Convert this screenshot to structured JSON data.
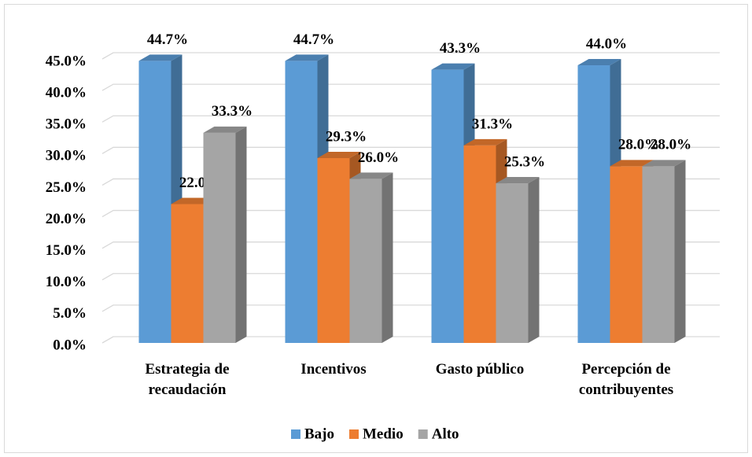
{
  "chart_data": {
    "type": "bar3d",
    "categories": [
      "Estrategia de recaudación",
      "Incentivos",
      "Gasto público",
      "Percepción de contribuyentes"
    ],
    "series": [
      {
        "name": "Bajo",
        "color": "#5b9bd5",
        "values": [
          44.7,
          44.7,
          43.3,
          44.0
        ],
        "value_labels": [
          "44.7%",
          "44.7%",
          "43.3%",
          "44.0%"
        ]
      },
      {
        "name": "Medio",
        "color": "#ed7d31",
        "values": [
          22.0,
          29.3,
          31.3,
          28.0
        ],
        "value_labels": [
          "22.0%",
          "29.3%",
          "31.3%",
          "28.0%"
        ]
      },
      {
        "name": "Alto",
        "color": "#a5a5a5",
        "values": [
          33.3,
          26.0,
          25.3,
          28.0
        ],
        "value_labels": [
          "33.3%",
          "26.0%",
          "25.3%",
          "28.0%"
        ]
      }
    ],
    "ylim": [
      0,
      45
    ],
    "yticks": [
      {
        "value": 0,
        "label": "0.0%"
      },
      {
        "value": 5,
        "label": "5.0%"
      },
      {
        "value": 10,
        "label": "10.0%"
      },
      {
        "value": 15,
        "label": "15.0%"
      },
      {
        "value": 20,
        "label": "20.0%"
      },
      {
        "value": 25,
        "label": "25.0%"
      },
      {
        "value": 30,
        "label": "30.0%"
      },
      {
        "value": 35,
        "label": "35.0%"
      },
      {
        "value": 40,
        "label": "40.0%"
      },
      {
        "value": 45,
        "label": "45.0%"
      }
    ],
    "grid": true,
    "legend": "bottom"
  }
}
